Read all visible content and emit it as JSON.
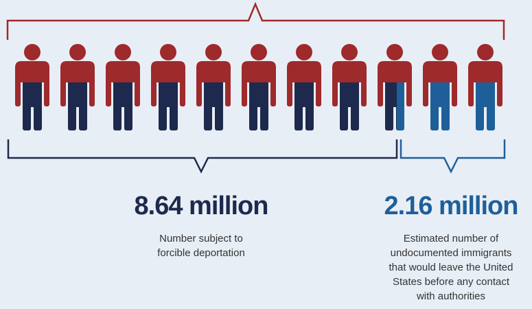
{
  "left": {
    "value": "8.64 million",
    "caption": [
      "Number subject to",
      "forcible deportation"
    ]
  },
  "right": {
    "value": "2.16 million",
    "caption": [
      "Estimated number of",
      "undocumented immigrants",
      "that would leave the United",
      "States before any contact",
      "with authorities"
    ]
  }
}
